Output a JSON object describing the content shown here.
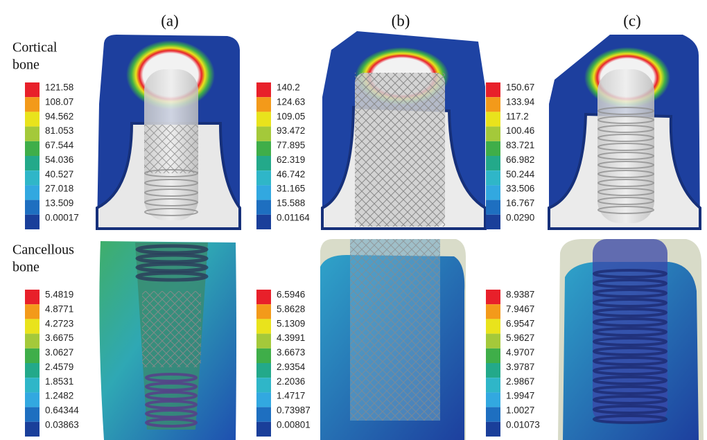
{
  "columns": [
    "(a)",
    "(b)",
    "(c)"
  ],
  "rows": [
    [
      "Cortical",
      "bone"
    ],
    [
      "Cancellous",
      "bone"
    ]
  ],
  "colors": [
    "#e8202a",
    "#f39a1a",
    "#e9e31c",
    "#a4c93a",
    "#3fae49",
    "#23a98a",
    "#2fb6c8",
    "#32a8e0",
    "#1e6fc0",
    "#1a3f9a"
  ],
  "panels": [
    [
      {
        "labels": [
          "121.58",
          "108.07",
          "94.562",
          "81.053",
          "67.544",
          "54.036",
          "40.527",
          "27.018",
          "13.509",
          "0.00017"
        ]
      },
      {
        "labels": [
          "140.2",
          "124.63",
          "109.05",
          "93.472",
          "77.895",
          "62.319",
          "46.742",
          "31.165",
          "15.588",
          "0.01164"
        ]
      },
      {
        "labels": [
          "150.67",
          "133.94",
          "117.2",
          "100.46",
          "83.721",
          "66.982",
          "50.244",
          "33.506",
          "16.767",
          "0.0290"
        ]
      }
    ],
    [
      {
        "labels": [
          "5.4819",
          "4.8771",
          "4.2723",
          "3.6675",
          "3.0627",
          "2.4579",
          "1.8531",
          "1.2482",
          "0.64344",
          "0.03863"
        ]
      },
      {
        "labels": [
          "6.5946",
          "5.8628",
          "5.1309",
          "4.3991",
          "3.6673",
          "2.9354",
          "2.2036",
          "1.4717",
          "0.73987",
          "0.00801"
        ]
      },
      {
        "labels": [
          "8.9387",
          "7.9467",
          "6.9547",
          "5.9627",
          "4.9707",
          "3.9787",
          "2.9867",
          "1.9947",
          "1.0027",
          "0.01073"
        ]
      }
    ]
  ]
}
